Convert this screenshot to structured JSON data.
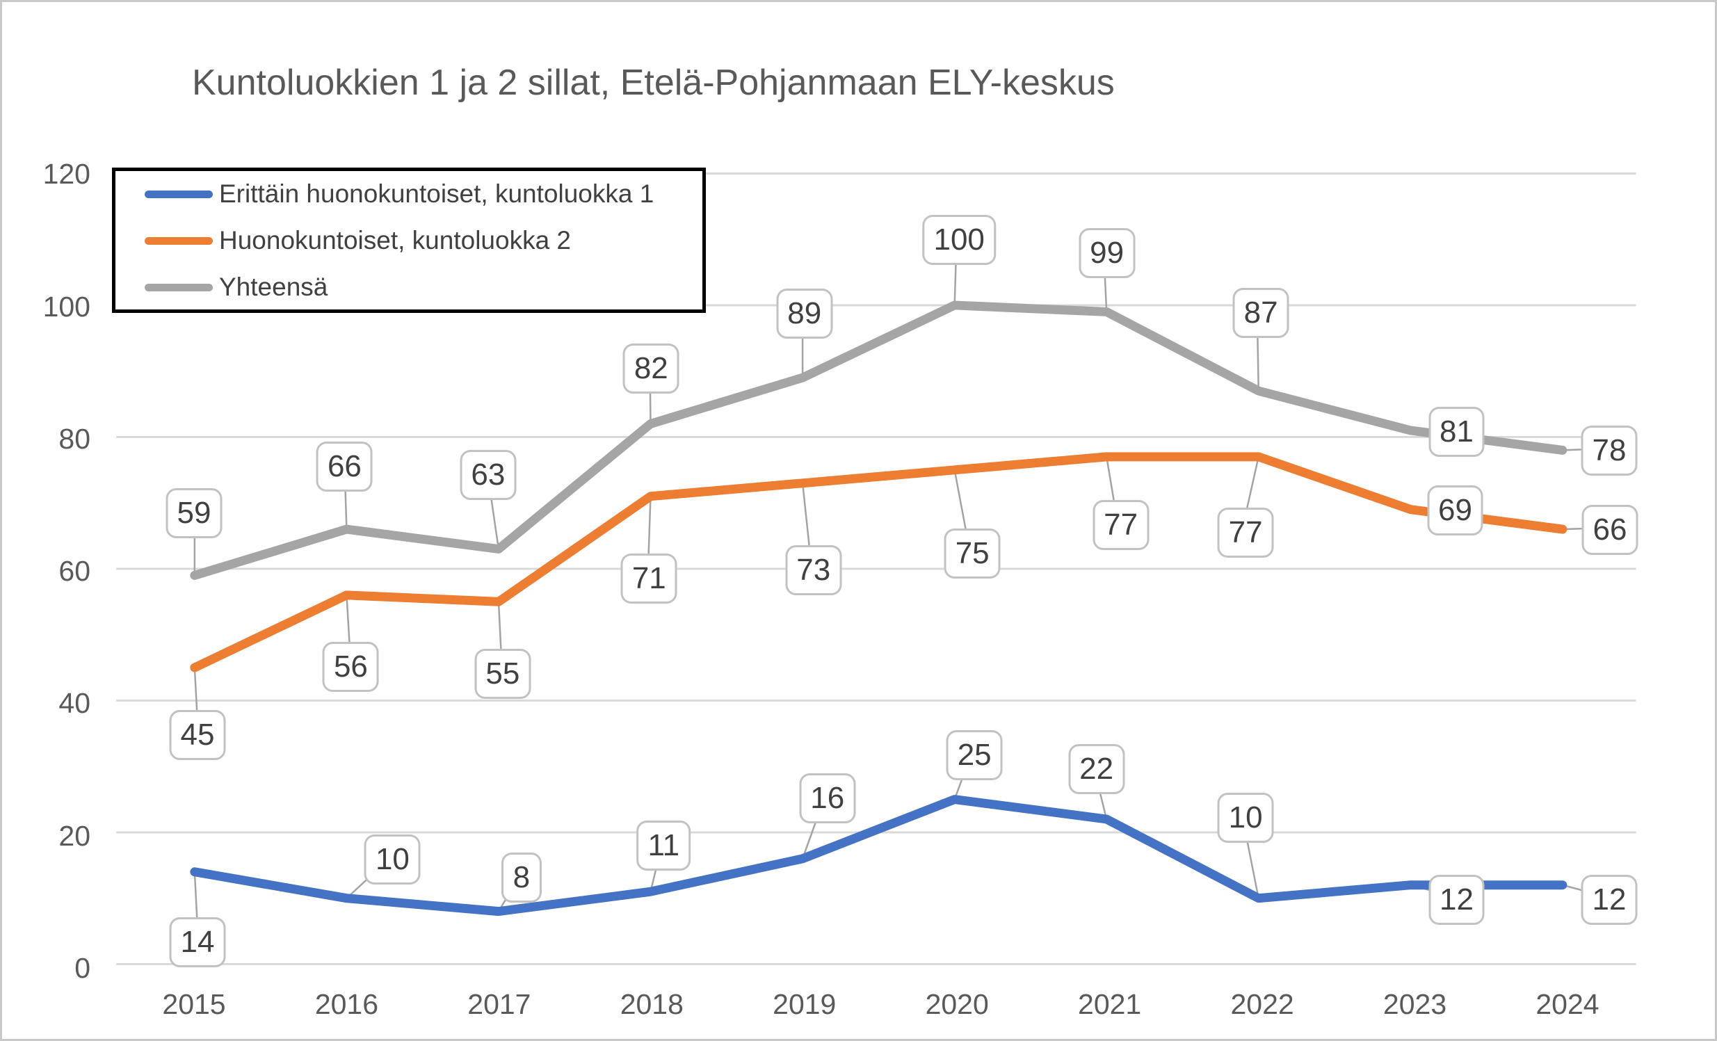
{
  "title": "Kuntoluokkien 1 ja 2 sillat, Etelä-Pohjanmaan ELY-keskus",
  "chart_data": {
    "type": "line",
    "x": [
      2015,
      2016,
      2017,
      2018,
      2019,
      2020,
      2021,
      2022,
      2023,
      2024
    ],
    "series": [
      {
        "name": "Erittäin huonokuntoiset, kuntoluokka 1",
        "color": "#4472C4",
        "values": [
          14,
          10,
          8,
          11,
          16,
          25,
          22,
          10,
          12,
          12
        ]
      },
      {
        "name": "Huonokuntoiset, kuntoluokka 2",
        "color": "#ED7D31",
        "values": [
          45,
          56,
          55,
          71,
          73,
          75,
          77,
          77,
          69,
          66
        ]
      },
      {
        "name": "Yhteensä",
        "color": "#A5A5A5",
        "values": [
          59,
          66,
          63,
          82,
          89,
          100,
          99,
          87,
          81,
          78
        ]
      }
    ],
    "ylim": [
      0,
      120
    ],
    "y_ticks": [
      0,
      20,
      40,
      60,
      80,
      100,
      120
    ],
    "grid": "horizontal-only",
    "legend_position": "top-left-inside-plot",
    "data_labels": "callout-boxes-with-leader-lines",
    "colors": {
      "gridline": "#D9D9D9",
      "axis_text": "#595959",
      "title_text": "#595959",
      "label_text": "#404040",
      "callout_border": "#C2C2C2",
      "leader_line": "#A3A3A3",
      "legend_border": "#000000"
    },
    "layout_hints": {
      "label_offsets": [
        [
          [
            5,
            96
          ],
          [
            66,
            -61
          ],
          [
            32,
            -54
          ],
          [
            17,
            -71
          ],
          [
            33,
            -92
          ],
          [
            25,
            -68
          ],
          [
            -19,
            -77
          ],
          [
            -24,
            -121
          ],
          [
            60,
            16
          ],
          [
            60,
            16
          ]
        ],
        [
          [
            5,
            93
          ],
          [
            6,
            100
          ],
          [
            5,
            100
          ],
          [
            -4,
            115
          ],
          [
            13,
            122
          ],
          [
            22,
            117
          ],
          [
            16,
            96
          ],
          [
            -24,
            107
          ],
          [
            58,
            -2
          ],
          [
            61,
            -2
          ]
        ],
        [
          [
            0,
            -93
          ],
          [
            -3,
            -93
          ],
          [
            -16,
            -110
          ],
          [
            -1,
            -82
          ],
          [
            0,
            -94
          ],
          [
            3,
            -96
          ],
          [
            -4,
            -86
          ],
          [
            -2,
            -114
          ],
          [
            60,
            0
          ],
          [
            60,
            -2
          ]
        ]
      ]
    }
  }
}
